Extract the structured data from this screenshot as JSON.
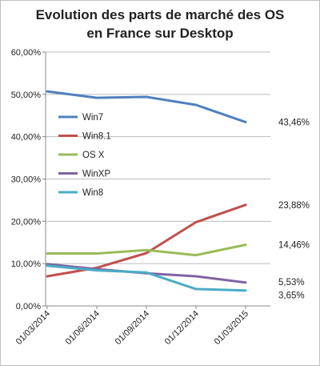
{
  "chart_data": {
    "type": "line",
    "title_lines": [
      "Evolution des parts de marché des OS",
      "en France sur Desktop"
    ],
    "x": [
      "01/03/2014",
      "01/06/2014",
      "01/09/2014",
      "01/12/2014",
      "01/03/2015"
    ],
    "ylim": [
      0,
      60
    ],
    "yticks": [
      0,
      10,
      20,
      30,
      40,
      50,
      60
    ],
    "ytick_labels": [
      "0,00%",
      "10,00%",
      "20,00%",
      "30,00%",
      "40,00%",
      "50,00%",
      "60,00%"
    ],
    "grid": "horizontal",
    "legend_position": "left-inside",
    "series": [
      {
        "name": "Win7",
        "color": "#4f81bd",
        "values": [
          50.7,
          49.2,
          49.4,
          47.5,
          43.46
        ],
        "end_label": "43,46%"
      },
      {
        "name": "Win8.1",
        "color": "#c0504d",
        "values": [
          7.0,
          9.0,
          12.5,
          19.8,
          23.88
        ],
        "end_label": "23,88%"
      },
      {
        "name": "OS X",
        "color": "#9bbb59",
        "values": [
          12.4,
          12.4,
          13.2,
          12.0,
          14.46
        ],
        "end_label": "14,46%"
      },
      {
        "name": "WinXP",
        "color": "#8064a2",
        "values": [
          9.9,
          8.7,
          7.7,
          7.0,
          5.53
        ],
        "end_label": "5,53%"
      },
      {
        "name": "Win8",
        "color": "#4bacc6",
        "values": [
          9.5,
          8.4,
          7.9,
          4.0,
          3.65
        ],
        "end_label": "3,65%"
      }
    ]
  }
}
